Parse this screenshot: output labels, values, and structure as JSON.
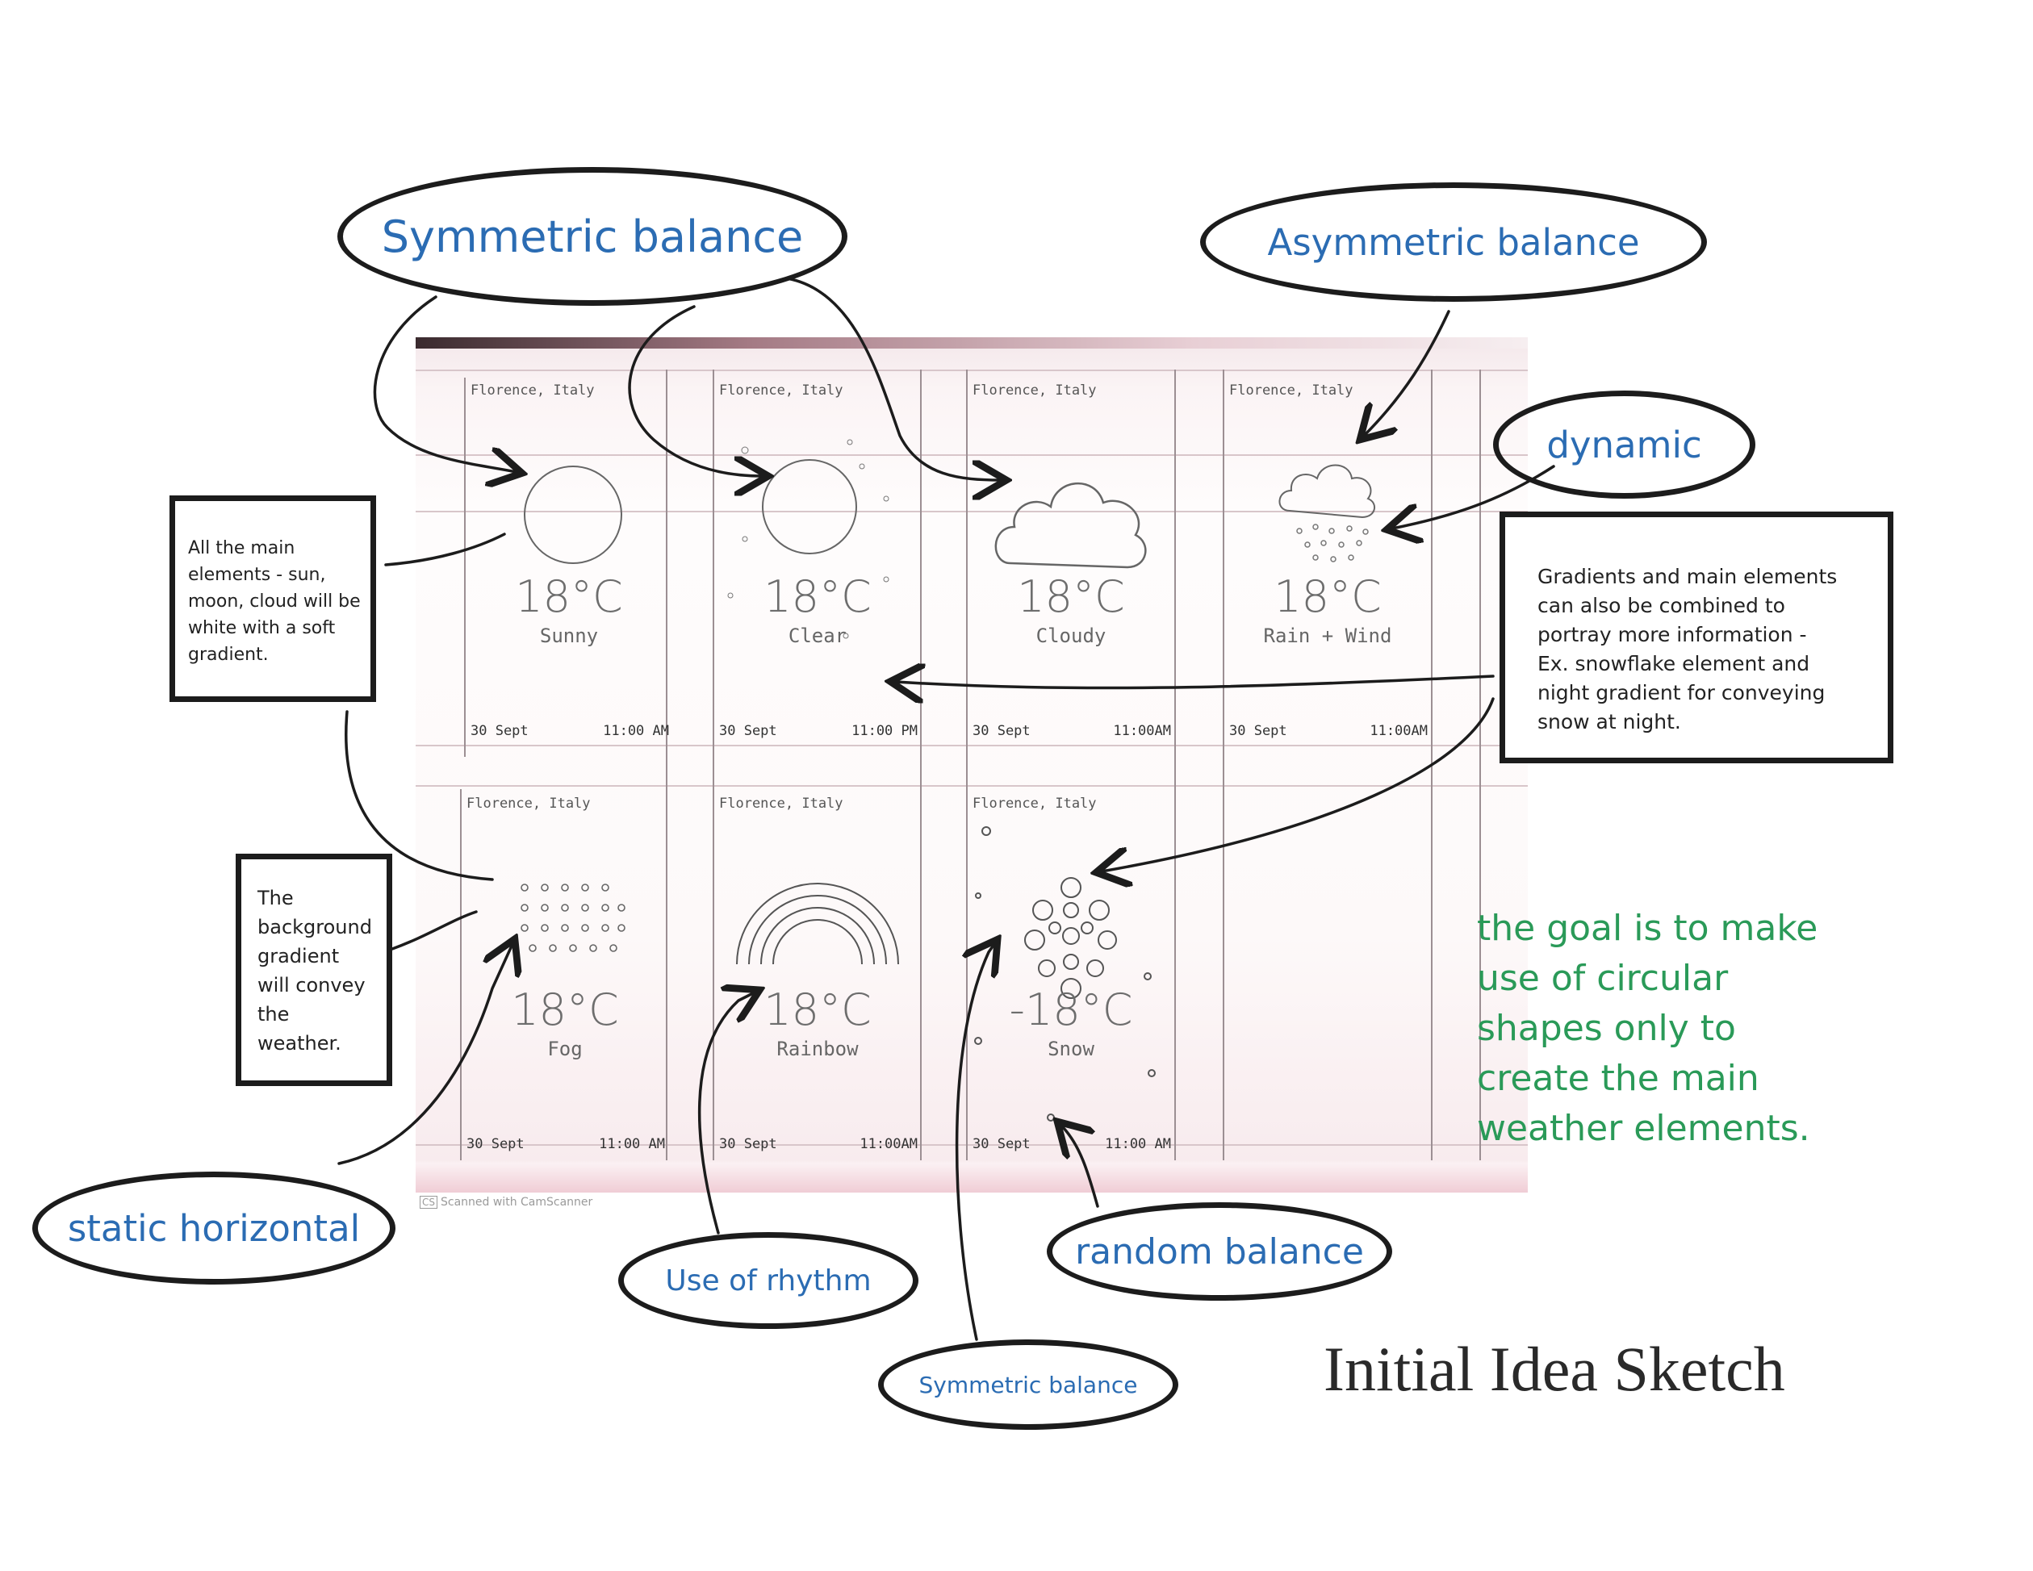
{
  "title": "Initial Idea Sketch",
  "bubbles": {
    "symmetric_top": "Symmetric balance",
    "asymmetric": "Asymmetric balance",
    "dynamic": "dynamic",
    "static_horizontal": "static horizontal",
    "rhythm": "Use of rhythm",
    "random": "random balance",
    "symmetric_bottom": "Symmetric balance"
  },
  "notes": {
    "main_elements": "All the main\nelements - sun,\nmoon, cloud will be\nwhite with a soft\ngradient.",
    "background": "The\nbackground\ngradient\nwill convey\nthe\nweather.",
    "gradients": "Gradients and main elements\ncan also be combined to\nportray more information -\nEx. snowflake element and\nnight gradient for conveying\nsnow at night."
  },
  "goal": "the goal is to make\nuse of circular\nshapes only to\ncreate the main\nweather elements.",
  "scanner_label": "Scanned with CamScanner",
  "scanner_badge": "CS",
  "panels": [
    {
      "location": "Florence, Italy",
      "temp": "18°C",
      "condition": "Sunny",
      "date": "30 Sept",
      "time": "11:00 AM"
    },
    {
      "location": "Florence, Italy",
      "temp": "18°C",
      "condition": "Clear",
      "date": "30 Sept",
      "time": "11:00 PM"
    },
    {
      "location": "Florence, Italy",
      "temp": "18°C",
      "condition": "Cloudy",
      "date": "30 Sept",
      "time": "11:00AM"
    },
    {
      "location": "Florence, Italy",
      "temp": "18°C",
      "condition": "Rain + Wind",
      "date": "30 Sept",
      "time": "11:00AM"
    },
    {
      "location": "Florence, Italy",
      "temp": "18°C",
      "condition": "Fog",
      "date": "30 Sept",
      "time": "11:00 AM"
    },
    {
      "location": "Florence, Italy",
      "temp": "18°C",
      "condition": "Rainbow",
      "date": "30 Sept",
      "time": "11:00AM"
    },
    {
      "location": "Florence, Italy",
      "temp": "-18°C",
      "condition": "Snow",
      "date": "30 Sept",
      "time": "11:00 AM"
    }
  ]
}
